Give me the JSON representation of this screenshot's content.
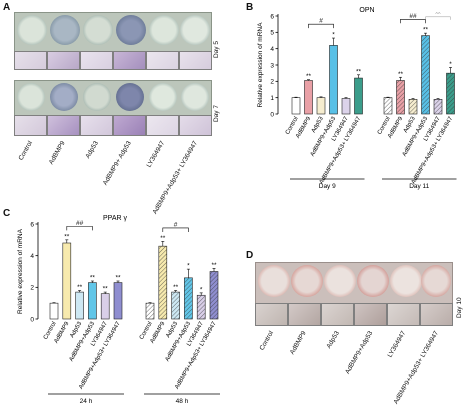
{
  "panels": {
    "A": {
      "letter": "A",
      "day_labels": [
        "Day 5",
        "Day 7"
      ],
      "groups": [
        "Control",
        "AdBMP9",
        "Adp53",
        "AdBMP9+ Adp53",
        "LY364947",
        "AdBMP9+Adp53+ LY364947"
      ]
    },
    "D": {
      "letter": "D",
      "day_label": "Day 10",
      "groups": [
        "Control",
        "AdBMP9",
        "Adp53",
        "AdBMP9+Adp53",
        "LY364947",
        "AdBMP9+Adp53+ LY364947"
      ]
    }
  },
  "chart_data": [
    {
      "panel": "B",
      "type": "bar",
      "title": "OPN",
      "ylabel": "Relative expression of mRNA",
      "ylim": [
        0,
        6
      ],
      "yticks": [
        0,
        1,
        2,
        3,
        4,
        5,
        6
      ],
      "categories": [
        "Control",
        "AdBMP9",
        "Adp53",
        "AdBMP9+Adp53",
        "LY364947",
        "AdBMP9+Adp53+ LY364947"
      ],
      "groups": [
        {
          "name": "Day 9",
          "values": [
            1.0,
            2.05,
            1.0,
            4.2,
            0.95,
            2.2
          ],
          "errors": [
            0.03,
            0.05,
            0.05,
            0.45,
            0.05,
            0.2
          ],
          "sig": [
            "",
            "**",
            "",
            "*",
            "",
            "**"
          ],
          "bracket": {
            "from": 1,
            "to": 3,
            "label": "#"
          }
        },
        {
          "name": "Day 11",
          "values": [
            1.0,
            2.05,
            0.9,
            4.8,
            0.9,
            2.5
          ],
          "errors": [
            0.03,
            0.2,
            0.05,
            0.15,
            0.05,
            0.35
          ],
          "sig": [
            "",
            "**",
            "",
            "**",
            "",
            "*"
          ],
          "bracket": {
            "from": 1,
            "to": 3,
            "label": "##"
          }
        }
      ],
      "extra_marks": [
        {
          "group": 1,
          "label": "^^",
          "from": 3,
          "to": 5
        }
      ]
    },
    {
      "panel": "C",
      "type": "bar",
      "title": "PPAR γ",
      "ylabel": "Relative expression of mRNA",
      "ylim": [
        0,
        6
      ],
      "yticks": [
        0,
        2,
        4,
        6
      ],
      "categories": [
        "Control",
        "AdBMP9",
        "Adp53",
        "AdBMP9+Adp53",
        "LY364947",
        "AdBMP9+Adp53+ LY364947"
      ],
      "groups": [
        {
          "name": "24 h",
          "values": [
            1.0,
            4.8,
            1.7,
            2.3,
            1.6,
            2.3
          ],
          "errors": [
            0.03,
            0.2,
            0.1,
            0.1,
            0.1,
            0.1
          ],
          "sig": [
            "",
            "**",
            "**",
            "**",
            "**",
            "**"
          ],
          "bracket": {
            "from": 1,
            "to": 3,
            "label": "##"
          }
        },
        {
          "name": "48 h",
          "values": [
            1.0,
            4.6,
            1.7,
            2.6,
            1.5,
            3.0
          ],
          "errors": [
            0.03,
            0.3,
            0.1,
            0.55,
            0.15,
            0.2
          ],
          "sig": [
            "",
            "**",
            "**",
            "*",
            "*",
            "**"
          ],
          "bracket": {
            "from": 1,
            "to": 3,
            "label": "#"
          }
        }
      ]
    }
  ],
  "colors": {
    "bar_fills": [
      "#ffffff",
      "#e9a0a6",
      "#f6edcf",
      "#58c0e6",
      "#dcd3ea",
      "#3b9d8b"
    ],
    "bar_fills_c": [
      "#ffffff",
      "#f7eaae",
      "#cde8f3",
      "#61c6e8",
      "#d9cfe8",
      "#8f8ed0"
    ]
  }
}
